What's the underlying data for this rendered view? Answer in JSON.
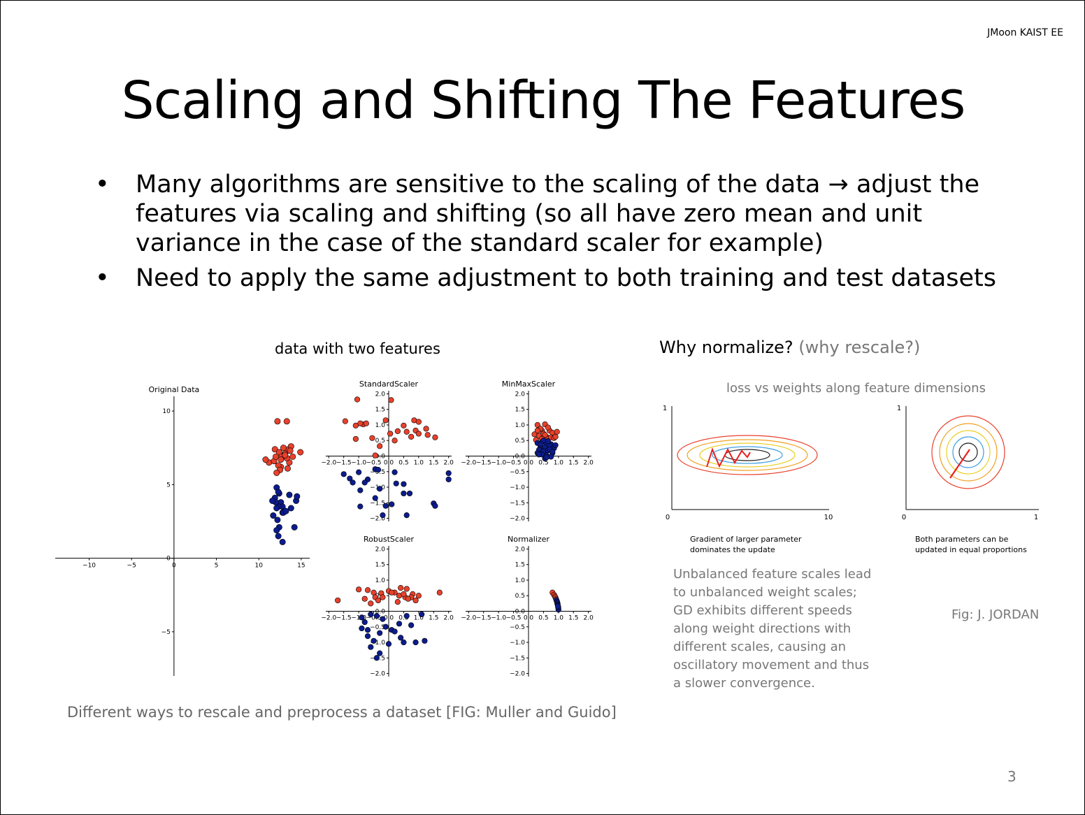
{
  "header": {
    "author": "JMoon KAIST EE"
  },
  "title": "Scaling and Shifting The Features",
  "bullets": [
    "Many algorithms are sensitive to the scaling of the data  → adjust the features via scaling and shifting (so all have zero mean and unit variance in the case of the standard scaler for example)",
    "Need to apply the same adjustment to both training and test datasets"
  ],
  "bullet_marker": "•",
  "left_figure": {
    "caption": "data with two features",
    "footer": "Different ways to rescale and preprocess a dataset [FIG: Muller and Guido]",
    "colors": {
      "class_a": "#e8412c",
      "class_b": "#0c1c8c"
    },
    "chart_data": [
      {
        "type": "scatter",
        "title": "Original Data",
        "xlim": [
          -14,
          16
        ],
        "ylim": [
          -8,
          11
        ],
        "xticks": [
          "−10",
          "−5",
          "0",
          "5",
          "10",
          "15"
        ],
        "yticks": [
          "10",
          "5",
          "0",
          "−5"
        ],
        "series": [
          {
            "x": [
              12.2,
              13.3,
              11.9,
              12.4,
              12.7,
              13.1,
              13.5,
              14,
              14.9,
              11.2,
              11.8,
              12.6,
              13.6,
              12,
              12.9,
              13.8,
              12.3,
              13.3,
              10.8,
              12.5,
              13.4,
              12.1,
              13.1,
              13.7,
              12.6
            ],
            "y": [
              9.3,
              9.3,
              7.4,
              7.2,
              6.9,
              7.1,
              7.4,
              6.9,
              7.2,
              6.5,
              6.6,
              6.2,
              6.5,
              6.9,
              7.5,
              7.6,
              6.3,
              6.8,
              6.7,
              6,
              6.1,
              5.8,
              7.0,
              7.3,
              6.7
            ]
          },
          {
            "x": [
              12.1,
              12.4,
              13.6,
              11.9,
              12.6,
              12.8,
              12.3,
              12.1,
              13.1,
              14.4,
              13.8,
              12.8,
              12,
              12.9,
              11.7,
              12.4,
              14.5,
              12.3,
              12.8,
              11.6,
              12.3,
              13.2,
              12.2,
              12.1,
              14.2
            ],
            "y": [
              4.8,
              4.4,
              4.3,
              4.1,
              3.8,
              3.5,
              3.5,
              3.4,
              3.2,
              3.9,
              3.4,
              3.1,
              3.8,
              3.1,
              2.9,
              2.1,
              4.2,
              1.5,
              1.1,
              3.9,
              4.5,
              3.2,
              2.6,
              1.9,
              2.1
            ]
          }
        ]
      },
      {
        "type": "scatter",
        "title": "StandardScaler",
        "xlim": [
          -2.1,
          2.1
        ],
        "ylim": [
          -2.1,
          2.1
        ],
        "xticks": [
          "−2.0",
          "−1.5",
          "−1.0",
          "−0.5",
          "0.0",
          "0.5",
          "1.0",
          "1.5",
          "2.0"
        ],
        "yticks": [
          "2.0",
          "1.5",
          "1.0",
          "0.5",
          "0.0",
          "−0.5",
          "−1.0",
          "−1.5",
          "−2.0"
        ],
        "series": [
          {
            "x": [
              -1.05,
              0.08,
              -1.45,
              -0.85,
              -0.75,
              -0.1,
              0.5,
              0.85,
              1.0,
              1.25,
              -1.1,
              -0.55,
              0.3,
              0.6,
              0.75,
              1.3,
              -0.3,
              0.2,
              0.9,
              1.0,
              1.55,
              -0.45,
              0.05,
              -0.95,
              -1.1
            ],
            "y": [
              1.82,
              1.8,
              1.12,
              1.02,
              1.05,
              1.15,
              0.98,
              1.15,
              1.1,
              0.88,
              0.55,
              0.58,
              0.8,
              0.78,
              0.62,
              0.68,
              0.32,
              0.5,
              0.82,
              0.72,
              0.6,
              0.02,
              0.72,
              1.05,
              0.98
            ]
          },
          {
            "x": [
              -1.5,
              -1.0,
              -0.45,
              -0.35,
              0.2,
              -1.2,
              -0.7,
              0.25,
              -0.95,
              -0.3,
              0.5,
              2.0,
              -1.3,
              -0.8,
              0.5,
              1.5,
              1.55,
              -0.1,
              0.1,
              0.6,
              -0.45,
              -0.95,
              -0.2,
              0.7,
              2.0
            ],
            "y": [
              -0.58,
              -0.52,
              -0.42,
              -0.44,
              -0.52,
              -0.85,
              -0.75,
              -0.88,
              -1.1,
              -1.05,
              -1.2,
              -0.55,
              -0.72,
              -0.85,
              -0.9,
              -1.52,
              -1.6,
              -1.6,
              -1.55,
              -1.9,
              -1.35,
              -1.62,
              -1.9,
              -1.2,
              -0.75
            ]
          }
        ]
      },
      {
        "type": "scatter",
        "title": "MinMaxScaler",
        "xlim": [
          -2.1,
          2.1
        ],
        "ylim": [
          -2.1,
          2.1
        ],
        "xticks": [
          "−2.0",
          "−1.5",
          "−1.0",
          "−0.5",
          "0.0",
          "0.5",
          "1.0",
          "1.5",
          "2.0"
        ],
        "yticks": [
          "2.0",
          "1.5",
          "1.0",
          "0.5",
          "0.0",
          "−0.5",
          "−1.0",
          "−1.5",
          "−2.0"
        ],
        "series": [
          {
            "x": [
              0.3,
              0.55,
              0.45,
              0.7,
              0.8,
              0.2,
              0.35,
              0.6,
              0.95,
              0.5,
              0.65,
              0.25,
              0.75,
              0.4,
              0.85,
              0.55,
              0.9,
              0.3,
              0.65,
              0.45
            ],
            "y": [
              1.0,
              1.02,
              0.82,
              0.82,
              0.75,
              0.7,
              0.65,
              0.62,
              0.78,
              0.72,
              0.55,
              0.52,
              0.6,
              0.88,
              0.58,
              0.68,
              0.62,
              0.82,
              0.92,
              0.55
            ]
          },
          {
            "x": [
              0.3,
              0.45,
              0.6,
              0.75,
              0.4,
              0.55,
              0.7,
              0.85,
              0.35,
              0.5,
              0.65,
              0.8,
              0.3,
              0.45,
              0.6,
              0.75,
              0.9,
              0.5,
              0.65,
              0.4,
              0.55,
              0.7,
              0.35,
              0.6,
              0.8
            ],
            "y": [
              0.42,
              0.45,
              0.4,
              0.38,
              0.3,
              0.28,
              0.32,
              0.25,
              0.2,
              0.15,
              0.18,
              0.1,
              0.1,
              0.05,
              0.02,
              -0.02,
              0.35,
              0.5,
              0.48,
              0.38,
              -0.08,
              0.22,
              0.05,
              -0.04,
              0.14
            ]
          }
        ]
      },
      {
        "type": "scatter",
        "title": "RobustScaler",
        "xlim": [
          -2.1,
          2.1
        ],
        "ylim": [
          -2.1,
          2.1
        ],
        "xticks": [
          "−2.0",
          "−1.5",
          "−1.0",
          "−0.5",
          "0.0",
          "0.5",
          "1.0",
          "1.5",
          "2.0"
        ],
        "yticks": [
          "2.0",
          "1.5",
          "1.0",
          "0.5",
          "0.0",
          "−0.5",
          "−1.0",
          "−1.5",
          "−2.0"
        ],
        "series": [
          {
            "x": [
              -1.7,
              -1.0,
              -0.7,
              -0.5,
              -0.25,
              0.2,
              0.4,
              0.6,
              0.8,
              1.0,
              1.7,
              -0.8,
              -0.45,
              0.0,
              0.35,
              0.55,
              0.75,
              0.9,
              -0.35,
              0.1,
              -0.6,
              0.5,
              0.65,
              -0.2,
              0.3
            ],
            "y": [
              0.35,
              0.7,
              0.68,
              0.6,
              0.58,
              0.6,
              0.75,
              0.72,
              0.55,
              0.5,
              0.6,
              0.4,
              0.45,
              0.65,
              0.5,
              0.45,
              0.45,
              0.35,
              0.35,
              0.6,
              0.25,
              0.55,
              0.4,
              0.45,
              0.3
            ]
          },
          {
            "x": [
              -0.9,
              -0.8,
              -0.6,
              -0.4,
              -0.2,
              0.1,
              0.35,
              -0.7,
              -0.5,
              -0.1,
              0.0,
              0.6,
              1.1,
              -0.3,
              0.5,
              -0.9,
              -0.7,
              -0.3,
              0.2,
              0.4,
              0.9,
              1.2,
              -0.4,
              -0.6,
              0.75
            ],
            "y": [
              -0.2,
              -0.35,
              -0.1,
              -0.15,
              -0.25,
              -0.6,
              -0.4,
              -0.8,
              -0.95,
              -0.5,
              -1.05,
              -0.15,
              -0.1,
              -0.7,
              -1.0,
              -0.55,
              -0.6,
              -1.35,
              -0.65,
              -0.85,
              -1.0,
              -0.95,
              -1.5,
              -1.15,
              -0.45
            ]
          }
        ]
      },
      {
        "type": "scatter",
        "title": "Normalizer",
        "xlim": [
          -2.1,
          2.1
        ],
        "ylim": [
          -2.1,
          2.1
        ],
        "xticks": [
          "−2.0",
          "−1.5",
          "−1.0",
          "−0.5",
          "0.0",
          "0.5",
          "1.0",
          "1.5",
          "2.0"
        ],
        "yticks": [
          "2.0",
          "1.5",
          "1.0",
          "0.5",
          "0.0",
          "−0.5",
          "−1.0",
          "−1.5",
          "−2.0"
        ],
        "series": [
          {
            "x": [
              0.8,
              0.85,
              0.88,
              0.9,
              0.92,
              0.95,
              0.96,
              0.97
            ],
            "y": [
              0.6,
              0.53,
              0.48,
              0.44,
              0.39,
              0.32,
              0.28,
              0.25
            ]
          },
          {
            "x": [
              0.93,
              0.95,
              0.96,
              0.97,
              0.98,
              0.99,
              0.995,
              1.0,
              0.99,
              0.985
            ],
            "y": [
              0.36,
              0.3,
              0.26,
              0.22,
              0.18,
              0.14,
              0.1,
              0.05,
              0.12,
              0.16
            ]
          }
        ]
      }
    ]
  },
  "right_figure": {
    "heading": "Why normalize?",
    "heading_sub": "(why rescale?)",
    "subtitle": "loss vs weights along feature dimensions",
    "left_panel": {
      "y_tick": "1",
      "x_tick_start": "0",
      "x_tick_end": "10",
      "caption_line1": "Gradient of larger parameter",
      "caption_line2": "dominates the update"
    },
    "right_panel": {
      "y_tick": "1",
      "x_tick_start": "0",
      "x_tick_end": "1",
      "caption_line1": "Both parameters can be",
      "caption_line2": "updated in equal proportions"
    },
    "contour_colors": [
      "#e8412c",
      "#f0a020",
      "#e8d020",
      "#40a0e0",
      "#202020"
    ],
    "arrow_color": "#e82020",
    "explanation": "Unbalanced feature scales lead to unbalanced weight scales; GD exhibits different speeds along weight directions with different scales, causing an oscillatory movement and thus a slower convergence.",
    "credit": "Fig: J. JORDAN"
  },
  "page_number": "3"
}
